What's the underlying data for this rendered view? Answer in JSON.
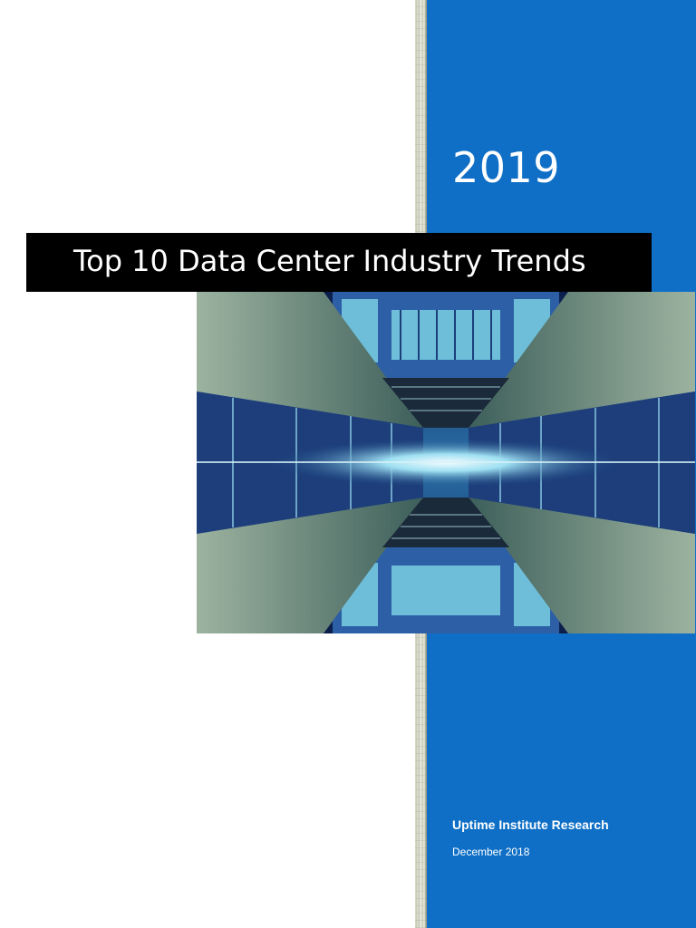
{
  "cover": {
    "year": "2019",
    "title": "Top 10 Data Center Industry Trends",
    "organization": "Uptime Institute Research",
    "date": "December 2018",
    "image_description_icon": "data-center-atrium-photo",
    "colors": {
      "band": "#0f6fc6",
      "title_bar": "#000000",
      "text_on_dark": "#ffffff"
    }
  }
}
